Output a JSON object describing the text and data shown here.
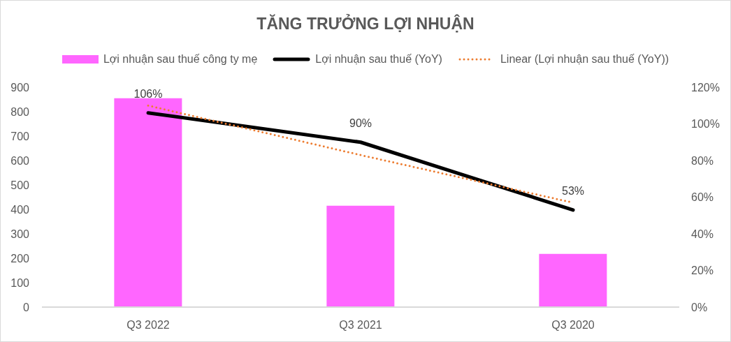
{
  "chart_data": {
    "type": "bar",
    "title": "TĂNG TRƯỞNG LỢI NHUẬN",
    "categories": [
      "Q3 2022",
      "Q3 2021",
      "Q3 2020"
    ],
    "series": [
      {
        "name": "Lợi nhuận sau thuế công ty mẹ",
        "color": "#ff66ff",
        "values": [
          855,
          415,
          218
        ]
      },
      {
        "name": "Lợi nhuận sau thuế (YoY)",
        "type": "line",
        "axis": "y2",
        "color": "#000000",
        "values": [
          106,
          90,
          53
        ],
        "value_labels": [
          "106%",
          "90%",
          "53%"
        ]
      },
      {
        "name": "Linear (Lợi nhuận sau thuế (YoY))",
        "type": "line",
        "axis": "y2",
        "color": "#ed7d31",
        "line_style": "dotted",
        "values": [
          110,
          83,
          57
        ]
      }
    ],
    "ylim": [
      0,
      900
    ],
    "yticks": [
      0,
      100,
      200,
      300,
      400,
      500,
      600,
      700,
      800,
      900
    ],
    "y2lim": [
      0,
      120
    ],
    "y2ticks": [
      {
        "value": 0,
        "label": "0%"
      },
      {
        "value": 20,
        "label": "20%"
      },
      {
        "value": 40,
        "label": "40%"
      },
      {
        "value": 60,
        "label": "60%"
      },
      {
        "value": 80,
        "label": "80%"
      },
      {
        "value": 100,
        "label": "100%"
      },
      {
        "value": 120,
        "label": "120%"
      }
    ],
    "legend": "top"
  }
}
